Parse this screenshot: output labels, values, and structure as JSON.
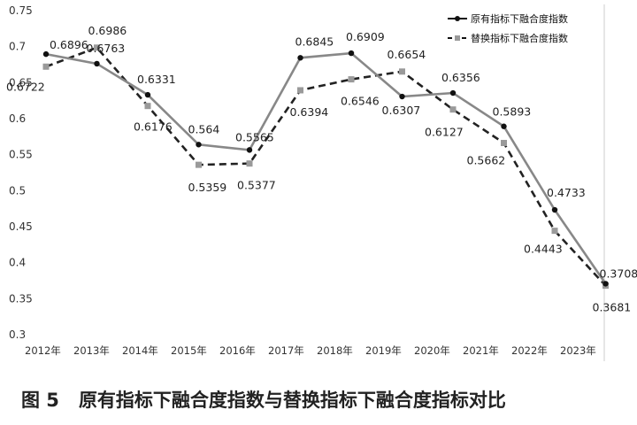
{
  "chart_data": {
    "type": "line",
    "categories": [
      "2012年",
      "2013年",
      "2014年",
      "2015年",
      "2016年",
      "2017年",
      "2018年",
      "2019年",
      "2020年",
      "2021年",
      "2022年",
      "2023年"
    ],
    "yticks": [
      "0.3",
      "0.35",
      "0.4",
      "0.45",
      "0.5",
      "0.55",
      "0.6",
      "0.65",
      "0.7",
      "0.75"
    ],
    "ylim": [
      0.3,
      0.75
    ],
    "grid": false,
    "legend_position": "top-right",
    "series": [
      {
        "name": "原有指标下融合度指数",
        "style": "solid",
        "marker": "circle",
        "color": "#888888",
        "marker_color": "#111111",
        "values": [
          0.6896,
          0.6763,
          0.6331,
          0.564,
          0.5565,
          0.6845,
          0.6909,
          0.6307,
          0.6356,
          0.5893,
          0.4733,
          0.3708
        ],
        "labels": [
          "0.6896",
          "0.6763",
          "0.6331",
          "0.564",
          "0.5565",
          "0.6845",
          "0.6909",
          "0.6307",
          "0.6356",
          "0.5893",
          "0.4733",
          "0.3708"
        ]
      },
      {
        "name": "替换指标下融合度指数",
        "style": "dashed",
        "marker": "square",
        "color": "#222222",
        "marker_color": "#9a9a9a",
        "values": [
          0.6722,
          0.6986,
          0.6176,
          0.5359,
          0.5377,
          0.6394,
          0.6546,
          0.6654,
          0.6127,
          0.5662,
          0.4443,
          0.3681
        ],
        "labels": [
          "0.6722",
          "0.6986",
          "0.6176",
          "0.5359",
          "0.5377",
          "0.6394",
          "0.6546",
          "0.6654",
          "0.6127",
          "0.5662",
          "0.4443",
          "0.3681"
        ]
      }
    ]
  },
  "caption": {
    "figure_no": "图 5",
    "text": "原有指标下融合度指数与替换指标下融合度指标对比"
  }
}
